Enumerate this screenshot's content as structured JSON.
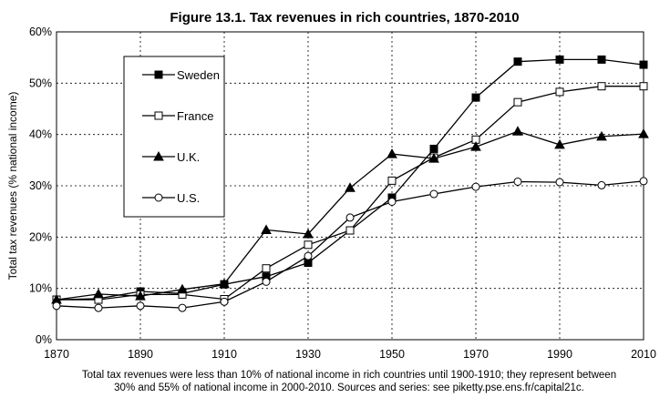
{
  "chart_data": {
    "type": "line",
    "title": "Figure 13.1. Tax revenues in rich countries, 1870-2010",
    "ylabel": "Total tax revenues (% national income)",
    "xlabel": "",
    "x": [
      1870,
      1880,
      1890,
      1900,
      1910,
      1920,
      1930,
      1940,
      1950,
      1960,
      1970,
      1980,
      1990,
      2000,
      2010
    ],
    "x_ticks": [
      1870,
      1890,
      1910,
      1930,
      1950,
      1970,
      1990,
      2010
    ],
    "y_ticks": [
      0,
      10,
      20,
      30,
      40,
      50,
      60
    ],
    "y_tick_labels": [
      "0%",
      "10%",
      "20%",
      "30%",
      "40%",
      "50%",
      "60%"
    ],
    "xlim": [
      1870,
      2010
    ],
    "ylim": [
      0,
      60
    ],
    "grid": "dashed",
    "legend_placement": "top-left",
    "series": [
      {
        "name": "Sweden",
        "marker": "square-filled",
        "values": [
          7.8,
          8.0,
          9.4,
          9.0,
          10.8,
          12.3,
          15.0,
          21.3,
          27.7,
          37.2,
          47.2,
          54.2,
          54.6,
          54.6,
          53.6
        ]
      },
      {
        "name": "France",
        "marker": "square-open",
        "values": [
          7.8,
          7.8,
          8.8,
          8.8,
          7.9,
          13.9,
          18.5,
          21.3,
          31.0,
          35.5,
          39.0,
          46.3,
          48.3,
          49.4,
          49.4
        ]
      },
      {
        "name": "U.K.",
        "marker": "triangle-filled",
        "values": [
          7.8,
          8.9,
          8.5,
          9.8,
          10.9,
          21.4,
          20.6,
          29.6,
          36.2,
          35.3,
          37.6,
          40.6,
          38.0,
          39.6,
          40.1
        ]
      },
      {
        "name": "U.S.",
        "marker": "circle-open",
        "values": [
          6.6,
          6.2,
          6.6,
          6.2,
          7.4,
          11.3,
          16.3,
          23.8,
          26.9,
          28.4,
          29.8,
          30.8,
          30.7,
          30.1,
          30.9
        ]
      }
    ],
    "caption_lines": [
      "Total tax revenues were less than 10% of national income in rich countries until 1900-1910; they represent between",
      "30% and 55% of national income in 2000-2010. Sources and series: see piketty.pse.ens.fr/capital21c."
    ]
  }
}
